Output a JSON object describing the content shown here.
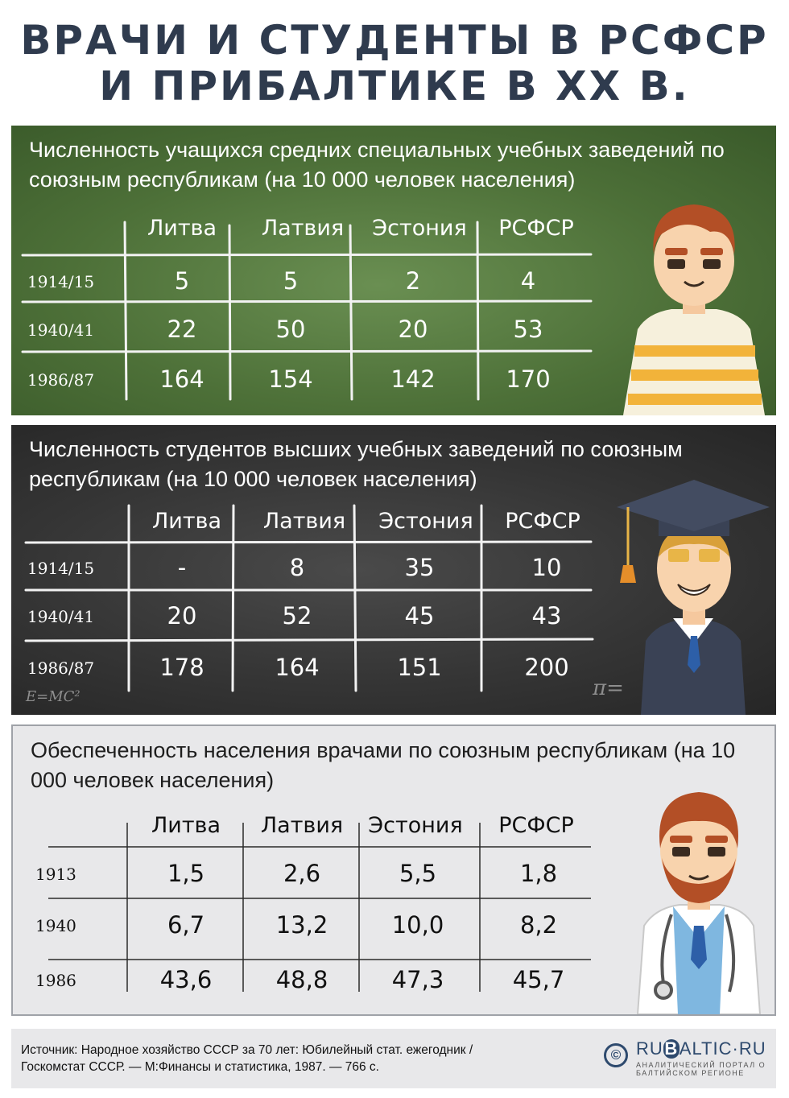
{
  "title": {
    "line1": "ВРАЧИ И СТУДЕНТЫ В РСФСР",
    "line2": "И ПРИБАЛТИКЕ В XX В."
  },
  "columns": [
    "Литва",
    "Латвия",
    "Эстония",
    "РСФСР"
  ],
  "chart_data": [
    {
      "type": "table",
      "title": "Численность учащихся средних специальных учебных заведений по союзным республикам (на 10 000 человек населения)",
      "columns": [
        "Литва",
        "Латвия",
        "Эстония",
        "РСФСР"
      ],
      "rows": [
        {
          "label": "1914/15",
          "values": [
            "5",
            "5",
            "2",
            "4"
          ]
        },
        {
          "label": "1940/41",
          "values": [
            "22",
            "50",
            "20",
            "53"
          ]
        },
        {
          "label": "1986/87",
          "values": [
            "164",
            "154",
            "142",
            "170"
          ]
        }
      ]
    },
    {
      "type": "table",
      "title": "Численность студентов высших учебных заведений по союзным республикам (на 10 000 человек населения)",
      "columns": [
        "Литва",
        "Латвия",
        "Эстония",
        "РСФСР"
      ],
      "rows": [
        {
          "label": "1914/15",
          "values": [
            "-",
            "8",
            "35",
            "10"
          ]
        },
        {
          "label": "1940/41",
          "values": [
            "20",
            "52",
            "45",
            "43"
          ]
        },
        {
          "label": "1986/87",
          "values": [
            "178",
            "164",
            "151",
            "200"
          ]
        }
      ]
    },
    {
      "type": "table",
      "title": "Обеспеченность населения врачами по союзным республикам (на 10 000 человек населения)",
      "columns": [
        "Литва",
        "Латвия",
        "Эстония",
        "РСФСР"
      ],
      "rows": [
        {
          "label": "1913",
          "values": [
            "1,5",
            "2,6",
            "5,5",
            "1,8"
          ]
        },
        {
          "label": "1940",
          "values": [
            "6,7",
            "13,2",
            "10,0",
            "8,2"
          ]
        },
        {
          "label": "1986",
          "values": [
            "43,6",
            "48,8",
            "47,3",
            "45,7"
          ]
        }
      ]
    }
  ],
  "footer": {
    "source_line1": "Источник: Народное хозяйство СССР за 70 лет: Юбилейный стат. ежегодник /",
    "source_line2": "Госкомстат СССР. — М:Финансы и статистика, 1987. — 766 с.",
    "logo_symbol": "©",
    "logo_pre": "RU",
    "logo_b": "B",
    "logo_post": "ALTIC·RU",
    "logo_sub": "АНАЛИТИЧЕСКИЙ ПОРТАЛ О БАЛТИЙСКОМ РЕГИОНЕ"
  },
  "decor": {
    "formula1": "E=MC²",
    "formula2": "π="
  },
  "colors": {
    "title": "#2f3b4e",
    "green_board": "#4d7038",
    "dark_board": "#353535",
    "light_panel": "#e8e8ea",
    "brand": "#2e4a6e"
  }
}
